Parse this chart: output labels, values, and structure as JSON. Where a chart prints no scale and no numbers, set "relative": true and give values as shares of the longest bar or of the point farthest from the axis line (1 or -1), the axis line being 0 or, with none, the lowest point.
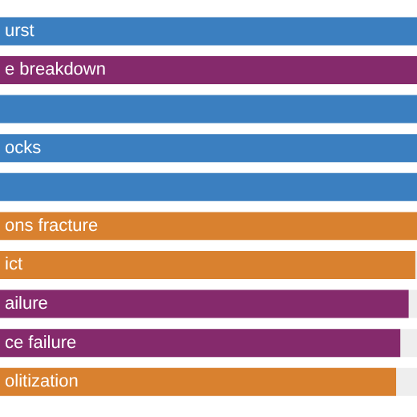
{
  "chart_data": {
    "type": "bar",
    "orientation": "horizontal",
    "relative": true,
    "categories": [
      "urst",
      "e breakdown",
      null,
      "ocks",
      null,
      "ons fracture",
      "ict",
      "ailure",
      "ce failure",
      "olitization"
    ],
    "values": [
      1,
      1,
      1,
      1,
      1,
      1,
      0.996,
      0.98,
      0.96,
      0.95
    ],
    "colors": [
      "#3b7fc0",
      "#852a6c",
      "#3b7fc0",
      "#3b7fc0",
      "#3b7fc0",
      "#d9812f",
      "#d9812f",
      "#852a6c",
      "#852a6c",
      "#d9812f"
    ]
  }
}
